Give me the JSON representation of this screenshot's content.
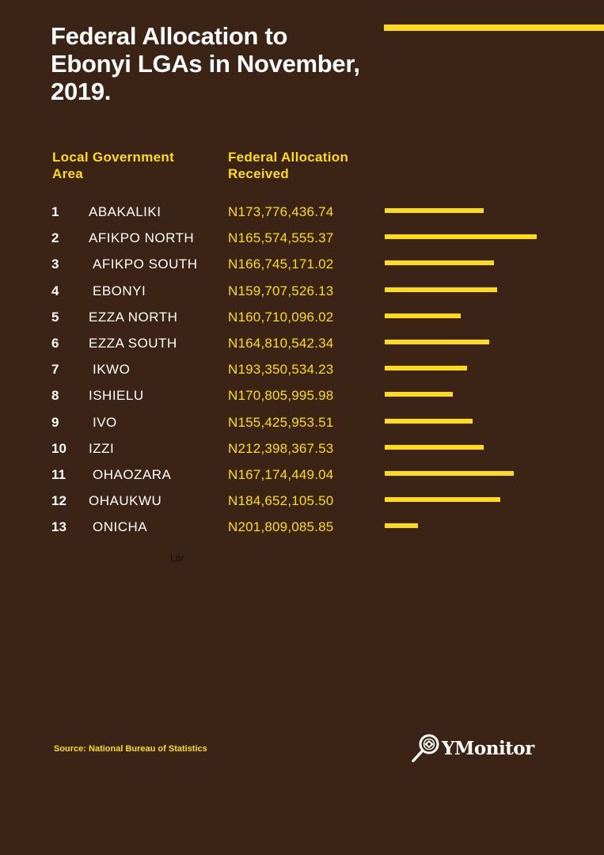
{
  "title": "Federal Allocation to Ebonyi LGAs in November, 2019.",
  "headers": {
    "lga": "Local Government Area",
    "allocation": "Federal Allocation Received"
  },
  "stray_text": "Lor",
  "source": "Source: National Bureau of Statistics",
  "logo_text": "YMonitor",
  "colors": {
    "background": "#3b2415",
    "accent": "#fddb16"
  },
  "chart_data": {
    "type": "bar",
    "title": "Federal Allocation to Ebonyi LGAs in November, 2019.",
    "rows": [
      {
        "rank": "1",
        "lga": "ABAKALIKI",
        "allocation": "N173,776,436.74",
        "bar_level": 0.65
      },
      {
        "rank": "2",
        "lga": "AFIKPO NORTH",
        "allocation": "N165,574,555.37",
        "bar_level": 1.0
      },
      {
        "rank": "3",
        "lga": "AFIKPO SOUTH",
        "allocation": "N166,745,171.02",
        "bar_level": 0.72
      },
      {
        "rank": "4",
        "lga": "EBONYI",
        "allocation": "N159,707,526.13",
        "bar_level": 0.74
      },
      {
        "rank": "5",
        "lga": "EZZA NORTH",
        "allocation": "N160,710,096.02",
        "bar_level": 0.5
      },
      {
        "rank": "6",
        "lga": "EZZA SOUTH",
        "allocation": "N164,810,542.34",
        "bar_level": 0.69
      },
      {
        "rank": "7",
        "lga": "IKWO",
        "allocation": "N193,350,534.23",
        "bar_level": 0.54
      },
      {
        "rank": "8",
        "lga": "ISHIELU",
        "allocation": "N170,805,995.98",
        "bar_level": 0.45
      },
      {
        "rank": "9",
        "lga": "IVO",
        "allocation": "N155,425,953.51",
        "bar_level": 0.58
      },
      {
        "rank": "10",
        "lga": "IZZI",
        "allocation": "N212,398,367.53",
        "bar_level": 0.65
      },
      {
        "rank": "11",
        "lga": "OHAOZARA",
        "allocation": "N167,174,449.04",
        "bar_level": 0.85
      },
      {
        "rank": "12",
        "lga": "OHAUKWU",
        "allocation": "N184,652,105.50",
        "bar_level": 0.76
      },
      {
        "rank": "13",
        "lga": "ONICHA",
        "allocation": "N201,809,085.85",
        "bar_level": 0.22
      }
    ]
  }
}
